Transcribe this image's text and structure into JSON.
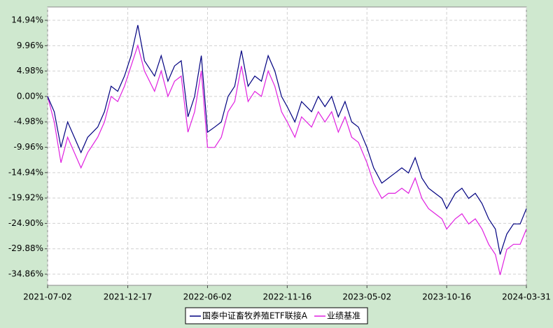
{
  "chart_data": {
    "type": "line",
    "x": [
      "2021-07-02",
      "2021-07-16",
      "2021-07-30",
      "2021-08-13",
      "2021-08-27",
      "2021-09-10",
      "2021-09-24",
      "2021-10-15",
      "2021-10-29",
      "2021-11-12",
      "2021-11-26",
      "2021-12-10",
      "2021-12-24",
      "2022-01-07",
      "2022-01-21",
      "2022-02-11",
      "2022-02-25",
      "2022-03-11",
      "2022-03-25",
      "2022-04-08",
      "2022-04-22",
      "2022-05-06",
      "2022-05-20",
      "2022-06-02",
      "2022-06-17",
      "2022-07-01",
      "2022-07-15",
      "2022-07-29",
      "2022-08-12",
      "2022-08-26",
      "2022-09-09",
      "2022-09-23",
      "2022-10-07",
      "2022-10-21",
      "2022-11-04",
      "2022-11-16",
      "2022-12-02",
      "2022-12-16",
      "2023-01-06",
      "2023-01-20",
      "2023-02-03",
      "2023-02-17",
      "2023-03-03",
      "2023-03-17",
      "2023-03-31",
      "2023-04-14",
      "2023-05-02",
      "2023-05-16",
      "2023-06-02",
      "2023-06-16",
      "2023-06-30",
      "2023-07-14",
      "2023-07-28",
      "2023-08-11",
      "2023-08-25",
      "2023-09-08",
      "2023-09-22",
      "2023-10-06",
      "2023-10-16",
      "2023-11-03",
      "2023-11-17",
      "2023-12-01",
      "2023-12-15",
      "2023-12-29",
      "2024-01-12",
      "2024-01-26",
      "2024-02-05",
      "2024-02-19",
      "2024-03-04",
      "2024-03-18",
      "2024-03-31"
    ],
    "series": [
      {
        "name": "国泰中证畜牧养殖ETF联接A",
        "color": "#000080",
        "values": [
          0,
          -3,
          -10,
          -5,
          -8,
          -11,
          -8,
          -6,
          -3,
          2,
          1,
          4,
          8,
          14,
          7,
          4,
          8,
          3,
          6,
          7,
          -4,
          0,
          8,
          -7,
          -6,
          -5,
          0,
          2,
          9,
          2,
          4,
          3,
          8,
          5,
          0,
          -2,
          -5,
          -1,
          -3,
          0,
          -2,
          0,
          -4,
          -1,
          -5,
          -6,
          -10,
          -14,
          -17,
          -16,
          -15,
          -14,
          -15,
          -12,
          -16,
          -18,
          -19,
          -20,
          -22,
          -19,
          -18,
          -20,
          -19,
          -21,
          -24,
          -26,
          -31,
          -27,
          -25,
          -25,
          -22
        ]
      },
      {
        "name": "业绩基准",
        "color": "#e020e0",
        "values": [
          0,
          -5,
          -13,
          -8,
          -11,
          -14,
          -11,
          -8,
          -5,
          0,
          -1,
          2,
          6,
          10,
          5,
          1,
          5,
          0,
          3,
          4,
          -7,
          -3,
          5,
          -10,
          -10,
          -8,
          -3,
          -1,
          6,
          -1,
          1,
          0,
          5,
          2,
          -3,
          -5,
          -8,
          -4,
          -6,
          -3,
          -5,
          -3,
          -7,
          -4,
          -8,
          -9,
          -13,
          -17,
          -20,
          -19,
          -19,
          -18,
          -19,
          -16,
          -20,
          -22,
          -23,
          -24,
          -26,
          -24,
          -23,
          -25,
          -24,
          -26,
          -29,
          -31,
          -35,
          -30,
          -29,
          -29,
          -26
        ]
      }
    ],
    "xlim": [
      "2021-07-02",
      "2024-03-31"
    ],
    "xticks": [
      "2021-07-02",
      "2021-12-17",
      "2022-06-02",
      "2022-11-16",
      "2023-05-02",
      "2023-10-16",
      "2024-03-31"
    ],
    "ylim": [
      -37.05,
      17.55
    ],
    "yticks": [
      {
        "value": 14.94,
        "label": "14.94%"
      },
      {
        "value": 9.96,
        "label": "9.96%"
      },
      {
        "value": 4.98,
        "label": "4.98%"
      },
      {
        "value": 0,
        "label": "0.00%"
      },
      {
        "value": -4.98,
        "label": "-4.98%"
      },
      {
        "value": -9.96,
        "label": "-9.96%"
      },
      {
        "value": -14.94,
        "label": "-14.94%"
      },
      {
        "value": -19.92,
        "label": "-19.92%"
      },
      {
        "value": -24.9,
        "label": "-24.90%"
      },
      {
        "value": -29.88,
        "label": "-29.88%"
      },
      {
        "value": -34.86,
        "label": "-34.86%"
      }
    ],
    "grid": true
  }
}
